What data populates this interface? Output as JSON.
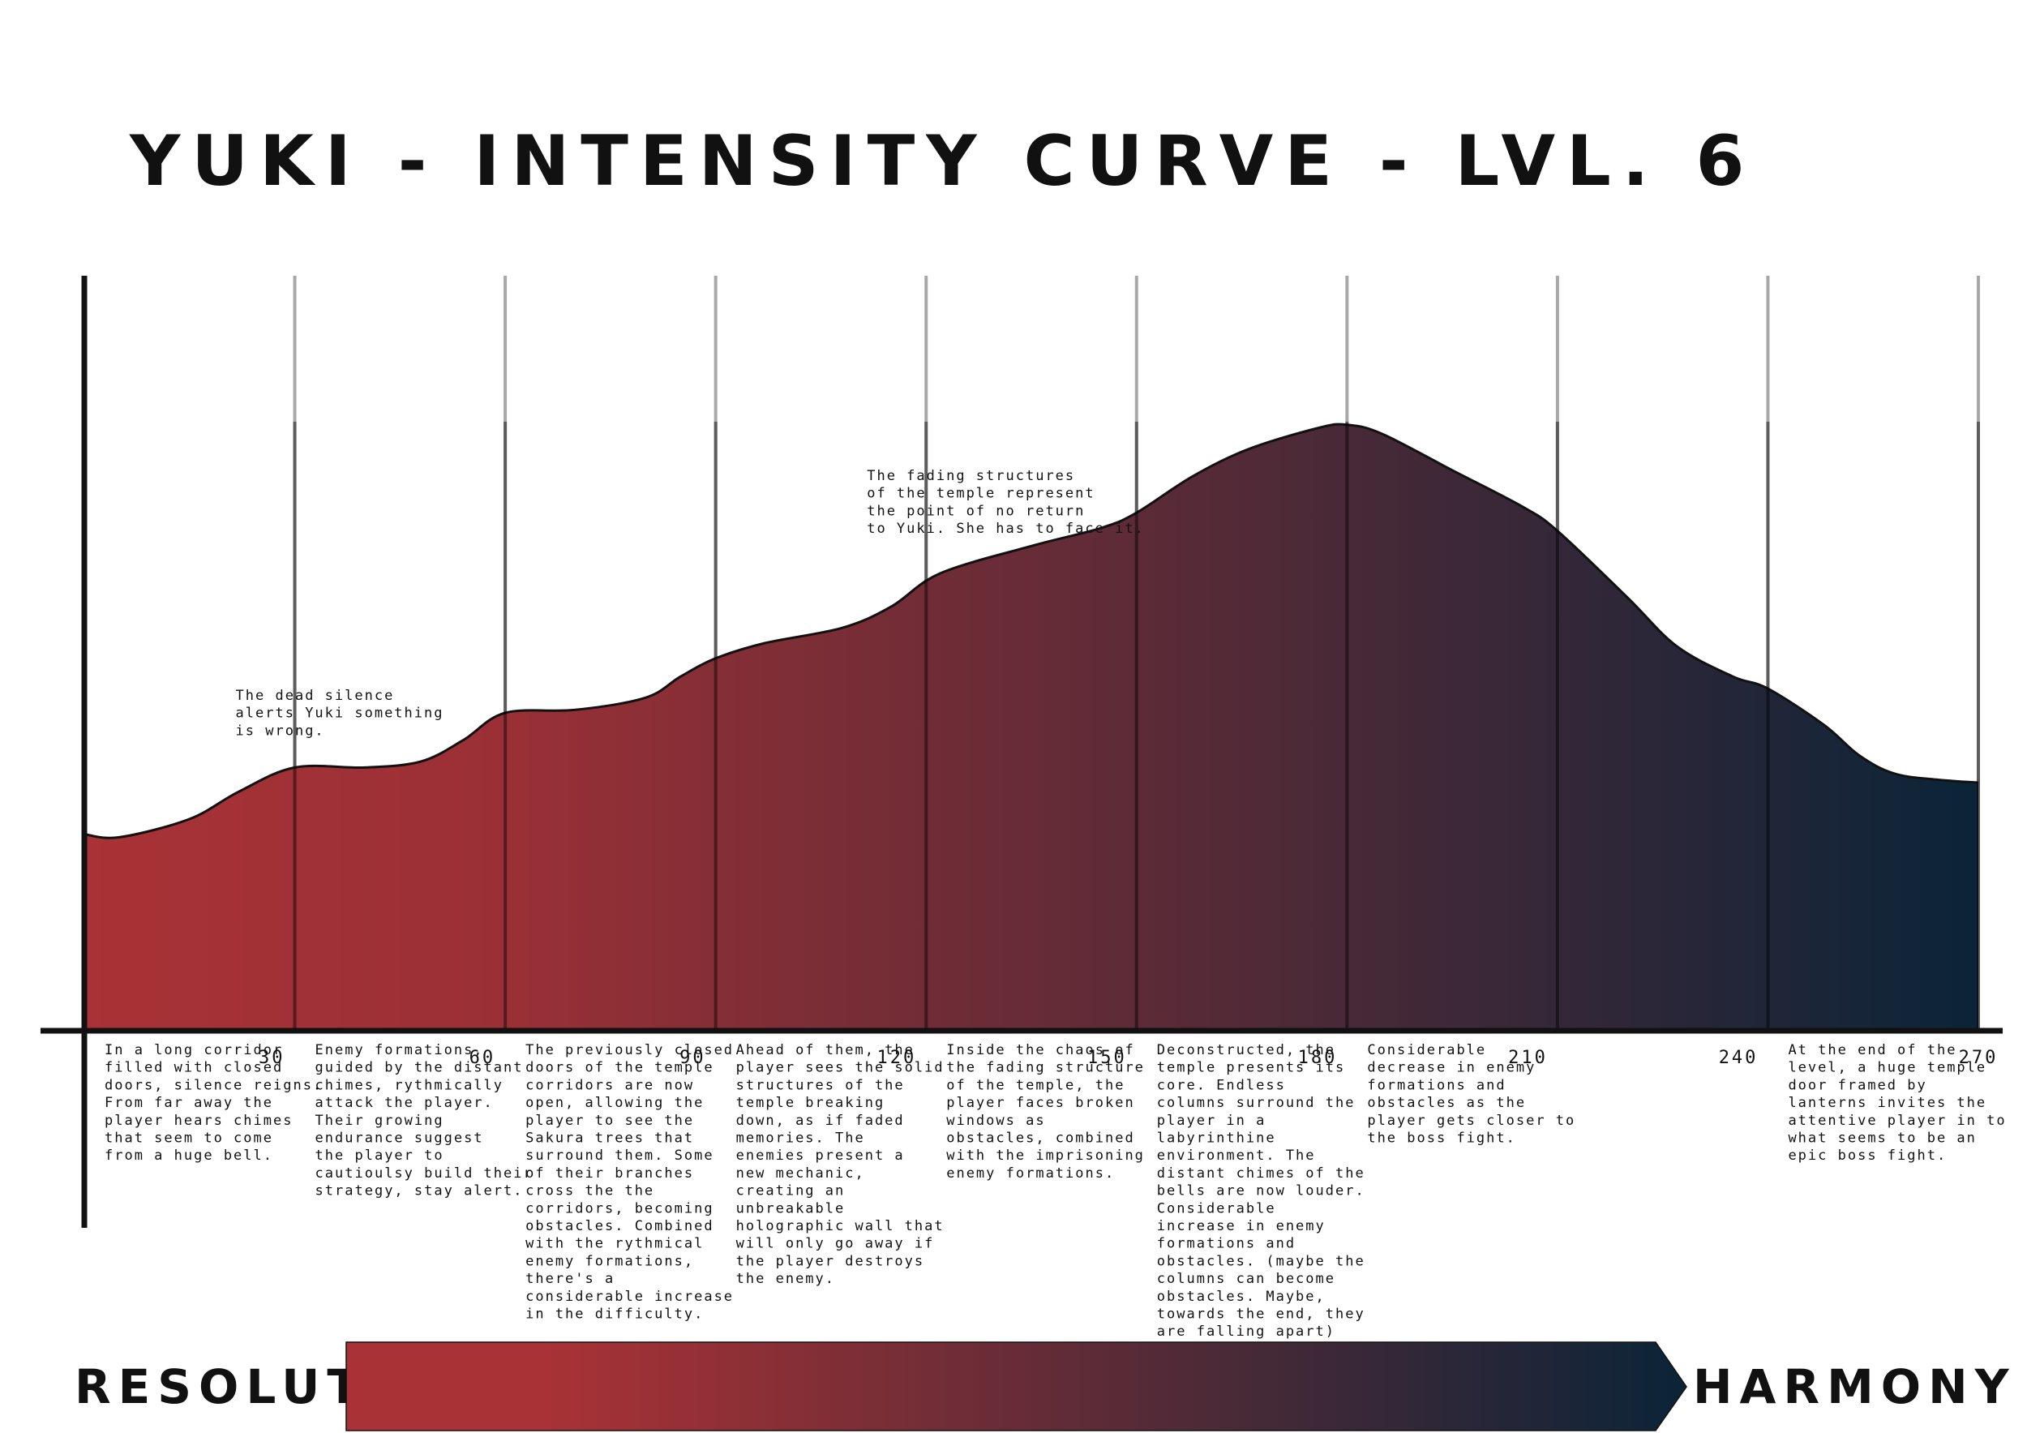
{
  "chart_data": {
    "type": "area",
    "title": "YUKI - INTENSITY CURVE - LVL. 6",
    "xlabel": "",
    "ylabel": "",
    "xlim": [
      0,
      270
    ],
    "ylim": [
      0,
      100
    ],
    "x_ticks": [
      "30",
      "60",
      "90",
      "120",
      "150",
      "180",
      "210",
      "240",
      "270"
    ],
    "series": [
      {
        "name": "Intensity",
        "x": [
          0,
          5,
          15,
          22,
          30,
          40,
          48,
          54,
          60,
          70,
          80,
          85,
          90,
          97,
          108,
          115,
          122,
          135,
          145,
          150,
          158,
          166,
          176,
          180,
          185,
          195,
          205,
          210,
          220,
          227,
          235,
          240,
          248,
          253,
          258,
          264,
          270
        ],
        "values": [
          32,
          31.5,
          34.5,
          39,
          43,
          43,
          44,
          47.5,
          52,
          52.5,
          54.5,
          58,
          61,
          63.5,
          66,
          69.5,
          75,
          79.5,
          82.5,
          85,
          91,
          95.5,
          99,
          99.5,
          98,
          92,
          86,
          82,
          71,
          63,
          58,
          56,
          50,
          45,
          42,
          41,
          40.5
        ]
      }
    ],
    "annotations": [
      {
        "x": 30,
        "lines": [
          "The dead silence",
          "alerts Yuki something",
          "is wrong."
        ]
      },
      {
        "x": 120,
        "lines": [
          "The fading structures",
          "of the temple represent",
          "the point of no return",
          "to Yuki. She has to face it."
        ]
      }
    ],
    "segments": [
      {
        "from": 0,
        "lines": [
          "In a long corridor",
          "filled with closed",
          "doors, silence reigns.",
          "From far away the",
          "player hears chimes",
          "that seem to come",
          "from a huge bell."
        ]
      },
      {
        "from": 30,
        "lines": [
          "Enemy formations,",
          "guided by the distant",
          "chimes, rythmically",
          "attack the player.",
          "Their growing",
          "endurance suggest",
          "the player to",
          "cautioulsy build their",
          "strategy, stay alert."
        ]
      },
      {
        "from": 60,
        "lines": [
          "The previously closed",
          "doors of the temple",
          "corridors are now",
          "open, allowing the",
          "player to see the",
          "Sakura trees that",
          "surround them. Some",
          "of their branches",
          "cross the the",
          "corridors, becoming",
          "obstacles. Combined",
          "with the rythmical",
          "enemy formations,",
          "there's a",
          "considerable increase",
          "in the difficulty."
        ]
      },
      {
        "from": 90,
        "lines": [
          "Ahead of them, the",
          "player sees the solid",
          "structures of the",
          "temple breaking",
          "down, as if faded",
          "memories. The",
          "enemies present a",
          "new mechanic,",
          "creating an",
          "unbreakable",
          "holographic wall that",
          "will only go away if",
          "the player destroys",
          "the enemy."
        ]
      },
      {
        "from": 120,
        "lines": [
          "Inside the chaos of",
          "the fading structure",
          "of the temple, the",
          "player faces broken",
          "windows as",
          "obstacles, combined",
          "with the imprisoning",
          "enemy formations."
        ]
      },
      {
        "from": 150,
        "lines": [
          "Deconstructed, the",
          "temple presents its",
          "core. Endless",
          "columns surround the",
          "player in a",
          "labyrinthine",
          "environment. The",
          "distant chimes of the",
          "bells are now louder.",
          "Considerable",
          "increase in enemy",
          "formations and",
          "obstacles. (maybe the",
          "columns can become",
          "obstacles. Maybe,",
          "towards the end, they",
          "are falling apart)"
        ]
      },
      {
        "from": 180,
        "lines": [
          "Considerable",
          "decrease in enemy",
          "formations and",
          "obstacles as the",
          "player gets closer to",
          "the boss fight."
        ]
      },
      {
        "from": 240,
        "lines": [
          "At the end of the",
          "level, a huge temple",
          "door framed by",
          "lanterns invites the",
          "attentive player in to",
          "what seems to be an",
          "epic boss fight."
        ]
      }
    ],
    "legend": {
      "type": "gradient-arrow",
      "start_label": "RESOLUTE",
      "end_label": "HARMONY",
      "start_color": "#a83236",
      "end_color": "#0b2438"
    },
    "grid": "vertical"
  }
}
